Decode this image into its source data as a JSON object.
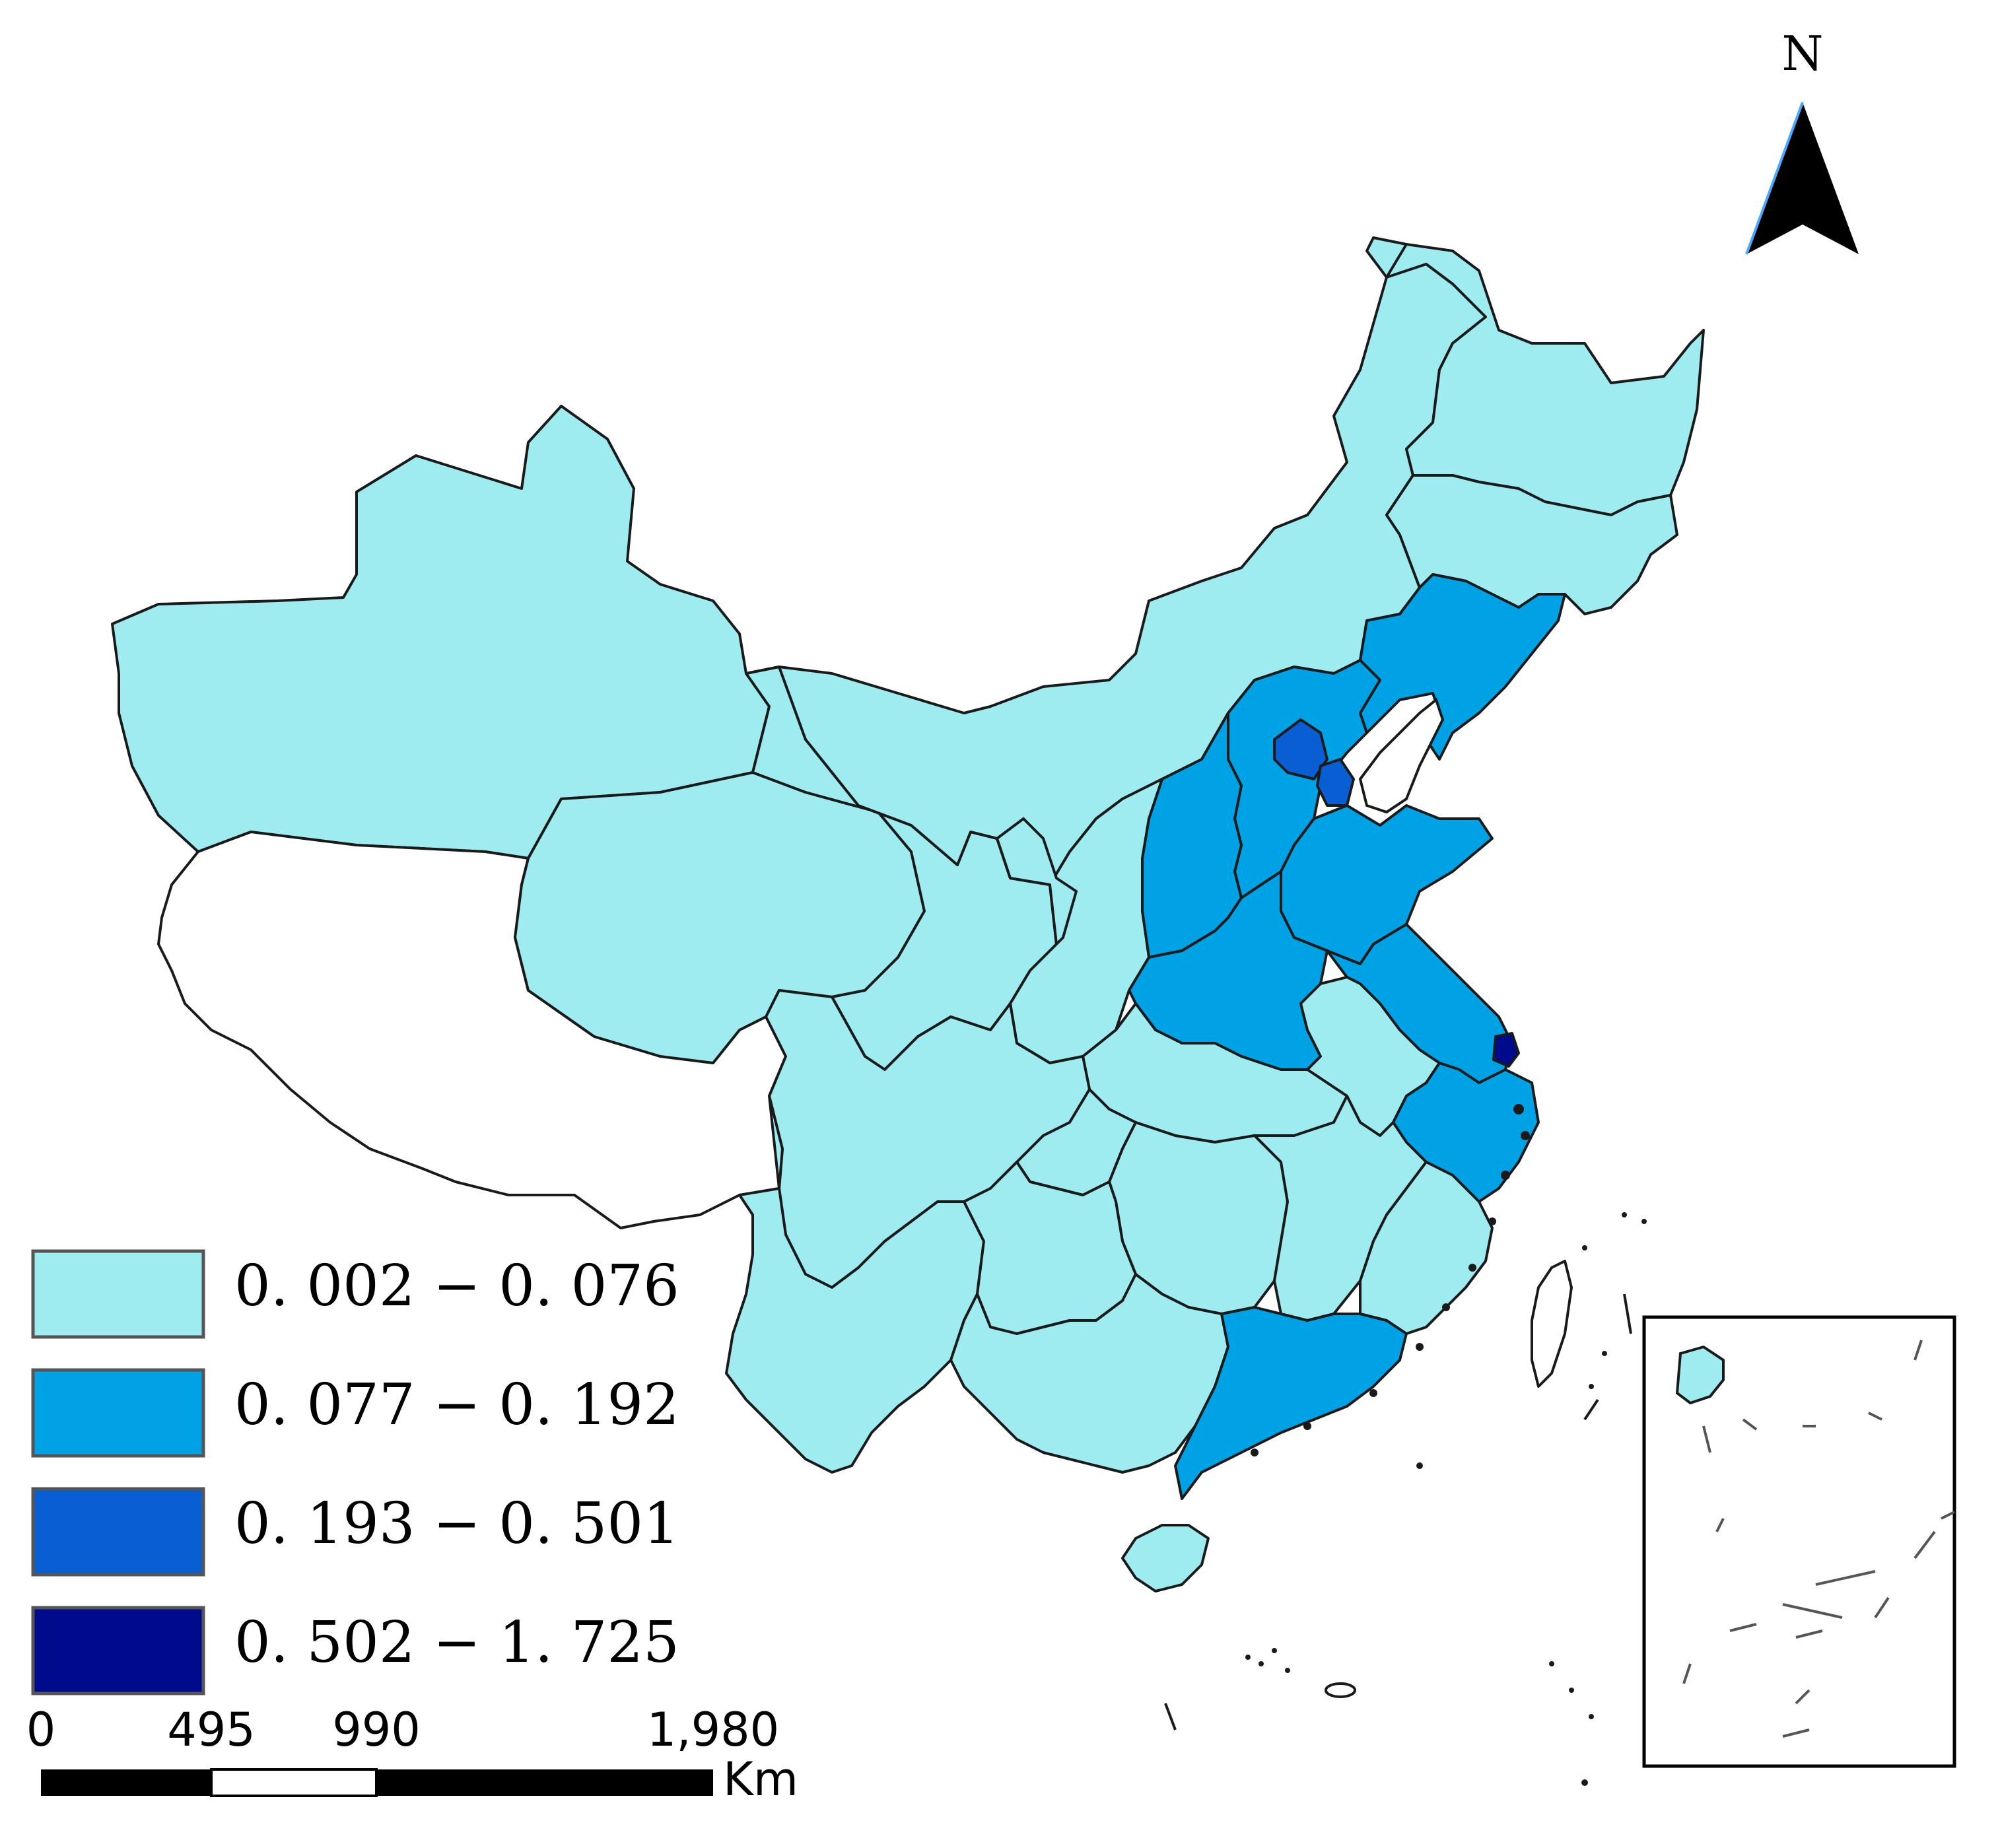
{
  "map": {
    "legend": [
      {
        "label": "0. 002 − 0. 076",
        "color": "#9EECF0"
      },
      {
        "label": "0. 077 − 0. 192",
        "color": "#00A2E6"
      },
      {
        "label": "0. 193 − 0. 501",
        "color": "#0A5ED3"
      },
      {
        "label": "0. 502 − 1. 725",
        "color": "#000A8C"
      }
    ],
    "scale_bar": {
      "ticks": [
        "0",
        "495",
        "990",
        "1,980"
      ],
      "unit": "Km"
    },
    "north_arrow": {
      "label": "N"
    },
    "colors": {
      "outline": "#1a1a1a",
      "no_data": "#ffffff"
    },
    "icons": {
      "north_arrow": "north-arrow-icon"
    }
  }
}
